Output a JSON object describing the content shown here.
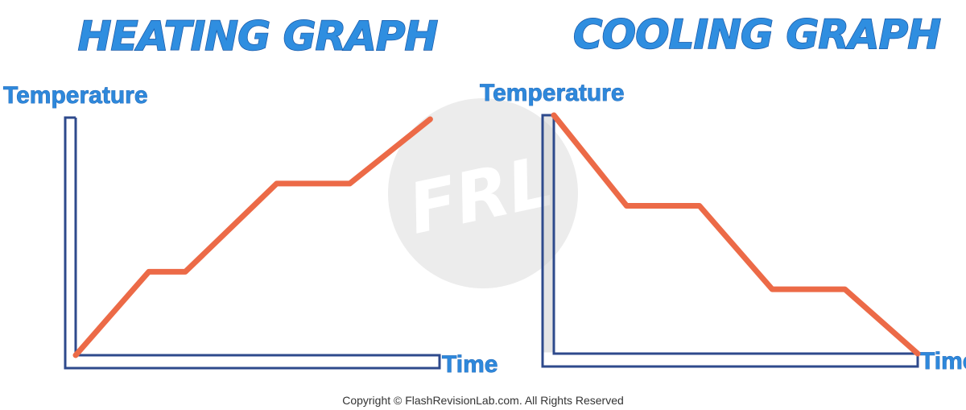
{
  "copyright": "Copyright © FlashRevisionLab.com. All Rights Reserved",
  "watermark": {
    "text": "FRL",
    "color": "#ececec"
  },
  "colors": {
    "title": "#2f8ee0",
    "axis_line": "#2e4a8c",
    "curve": "#ec6a47"
  },
  "chart_data": [
    {
      "type": "line",
      "title": "HEATING GRAPH",
      "xlabel": "Time",
      "ylabel": "Temperature",
      "xlim": [
        0,
        10
      ],
      "ylim": [
        0,
        10
      ],
      "grid": false,
      "legend": "none",
      "series": [
        {
          "x": [
            0,
            2,
            3,
            5.5,
            7.5,
            9.7
          ],
          "y": [
            0,
            3.5,
            3.5,
            7.2,
            7.2,
            9.9
          ]
        }
      ]
    },
    {
      "type": "line",
      "title": "COOLING GRAPH",
      "xlabel": "Time",
      "ylabel": "Temperature",
      "xlim": [
        0,
        10
      ],
      "ylim": [
        0,
        10
      ],
      "grid": false,
      "legend": "none",
      "series": [
        {
          "x": [
            0,
            2,
            4,
            6,
            8,
            10
          ],
          "y": [
            10,
            6.2,
            6.2,
            2.7,
            2.7,
            0
          ]
        }
      ]
    }
  ]
}
